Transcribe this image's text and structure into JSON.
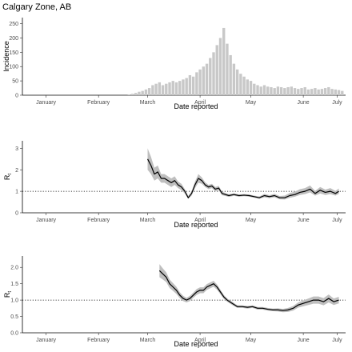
{
  "title": "Calgary Zone, AB",
  "colors": {
    "bars": "#c8c8c8",
    "line": "#000000",
    "ribbon": "#bfbfbf",
    "axis": "#000000",
    "reference_line": "#000000"
  },
  "chart_data": [
    {
      "type": "bar",
      "title": "Calgary Zone, AB",
      "xlabel": "Date reported",
      "ylabel": "Incidence",
      "x_tick_labels": [
        "January",
        "February",
        "March",
        "April",
        "May",
        "June",
        "July"
      ],
      "y_ticks": [
        0,
        50,
        100,
        150,
        200,
        250
      ],
      "ylim": [
        0,
        260
      ],
      "xlim": [
        "2020-01-01",
        "2020-07-10"
      ],
      "x": [
        "2020-03-04",
        "2020-03-06",
        "2020-03-08",
        "2020-03-10",
        "2020-03-12",
        "2020-03-14",
        "2020-03-16",
        "2020-03-18",
        "2020-03-20",
        "2020-03-22",
        "2020-03-24",
        "2020-03-26",
        "2020-03-28",
        "2020-03-30",
        "2020-04-01",
        "2020-04-03",
        "2020-04-05",
        "2020-04-07",
        "2020-04-09",
        "2020-04-11",
        "2020-04-13",
        "2020-04-15",
        "2020-04-17",
        "2020-04-19",
        "2020-04-21",
        "2020-04-23",
        "2020-04-25",
        "2020-04-27",
        "2020-04-29",
        "2020-05-01",
        "2020-05-03",
        "2020-05-05",
        "2020-05-07",
        "2020-05-09",
        "2020-05-11",
        "2020-05-13",
        "2020-05-15",
        "2020-05-17",
        "2020-05-19",
        "2020-05-21",
        "2020-05-23",
        "2020-05-25",
        "2020-05-27",
        "2020-05-29",
        "2020-05-31",
        "2020-06-02",
        "2020-06-04",
        "2020-06-06",
        "2020-06-08",
        "2020-06-10",
        "2020-06-12",
        "2020-06-14",
        "2020-06-16",
        "2020-06-18",
        "2020-06-20",
        "2020-06-22",
        "2020-06-24",
        "2020-06-26",
        "2020-06-28",
        "2020-06-30",
        "2020-07-02",
        "2020-07-04",
        "2020-07-06",
        "2020-07-08"
      ],
      "values": [
        3,
        5,
        8,
        12,
        15,
        20,
        25,
        35,
        40,
        45,
        35,
        40,
        45,
        50,
        45,
        50,
        55,
        60,
        70,
        65,
        80,
        90,
        100,
        110,
        130,
        150,
        175,
        200,
        235,
        180,
        140,
        110,
        90,
        75,
        65,
        55,
        50,
        40,
        35,
        30,
        35,
        30,
        28,
        25,
        30,
        28,
        25,
        28,
        30,
        25,
        22,
        25,
        28,
        20,
        22,
        25,
        20,
        22,
        25,
        28,
        22,
        20,
        18,
        15
      ],
      "series": [
        {
          "name": "",
          "color": "#c8c8c8"
        }
      ]
    },
    {
      "type": "line",
      "title": "",
      "xlabel": "Date reported",
      "ylabel": "Rt",
      "x_tick_labels": [
        "January",
        "February",
        "March",
        "April",
        "May",
        "June",
        "July"
      ],
      "y_ticks": [
        0,
        1,
        2,
        3
      ],
      "ylim": [
        0,
        3.2
      ],
      "xlim": [
        "2020-01-01",
        "2020-07-10"
      ],
      "reference_line": 1,
      "x": [
        "2020-03-15",
        "2020-03-17",
        "2020-03-19",
        "2020-03-21",
        "2020-03-23",
        "2020-03-25",
        "2020-03-27",
        "2020-03-29",
        "2020-03-31",
        "2020-04-02",
        "2020-04-04",
        "2020-04-06",
        "2020-04-08",
        "2020-04-10",
        "2020-04-12",
        "2020-04-14",
        "2020-04-16",
        "2020-04-18",
        "2020-04-20",
        "2020-04-22",
        "2020-04-24",
        "2020-04-26",
        "2020-04-28",
        "2020-04-30",
        "2020-05-02",
        "2020-05-05",
        "2020-05-08",
        "2020-05-11",
        "2020-05-14",
        "2020-05-17",
        "2020-05-20",
        "2020-05-23",
        "2020-05-26",
        "2020-05-29",
        "2020-06-01",
        "2020-06-04",
        "2020-06-07",
        "2020-06-10",
        "2020-06-13",
        "2020-06-16",
        "2020-06-19",
        "2020-06-22",
        "2020-06-25",
        "2020-06-28",
        "2020-07-01",
        "2020-07-04",
        "2020-07-06"
      ],
      "values": [
        2.5,
        2.2,
        1.8,
        1.9,
        1.6,
        1.6,
        1.5,
        1.4,
        1.5,
        1.3,
        1.2,
        1.0,
        0.7,
        0.9,
        1.3,
        1.6,
        1.5,
        1.3,
        1.2,
        1.25,
        1.1,
        1.15,
        0.9,
        0.85,
        0.8,
        0.85,
        0.8,
        0.82,
        0.8,
        0.75,
        0.7,
        0.8,
        0.75,
        0.8,
        0.7,
        0.7,
        0.8,
        0.85,
        0.95,
        1.0,
        1.1,
        0.9,
        1.05,
        0.95,
        1.0,
        0.9,
        1.0
      ],
      "ci_lower": [
        2.0,
        1.8,
        1.5,
        1.6,
        1.4,
        1.4,
        1.3,
        1.2,
        1.3,
        1.15,
        1.05,
        0.9,
        0.65,
        0.8,
        1.15,
        1.4,
        1.35,
        1.2,
        1.1,
        1.15,
        1.0,
        1.05,
        0.82,
        0.78,
        0.74,
        0.79,
        0.75,
        0.77,
        0.75,
        0.7,
        0.65,
        0.72,
        0.68,
        0.72,
        0.63,
        0.62,
        0.7,
        0.75,
        0.83,
        0.87,
        0.95,
        0.8,
        0.9,
        0.83,
        0.87,
        0.8,
        0.88
      ],
      "ci_upper": [
        3.0,
        2.6,
        2.1,
        2.2,
        1.8,
        1.8,
        1.7,
        1.6,
        1.7,
        1.45,
        1.35,
        1.1,
        0.78,
        1.0,
        1.45,
        1.8,
        1.65,
        1.42,
        1.3,
        1.35,
        1.2,
        1.25,
        0.98,
        0.92,
        0.86,
        0.91,
        0.85,
        0.87,
        0.85,
        0.8,
        0.76,
        0.88,
        0.82,
        0.88,
        0.78,
        0.8,
        0.92,
        0.98,
        1.1,
        1.15,
        1.27,
        1.02,
        1.2,
        1.08,
        1.15,
        1.02,
        1.13
      ],
      "series": [
        {
          "name": "",
          "color": "#000000"
        }
      ]
    },
    {
      "type": "line",
      "title": "",
      "xlabel": "Date reported",
      "ylabel": "Rt",
      "x_tick_labels": [
        "January",
        "February",
        "March",
        "April",
        "May",
        "June",
        "July"
      ],
      "y_ticks": [
        0.0,
        0.5,
        1.0,
        1.5,
        2.0
      ],
      "ylim": [
        0,
        2.25
      ],
      "xlim": [
        "2020-01-01",
        "2020-07-10"
      ],
      "reference_line": 1,
      "x": [
        "2020-03-22",
        "2020-03-24",
        "2020-03-26",
        "2020-03-28",
        "2020-03-30",
        "2020-04-01",
        "2020-04-03",
        "2020-04-05",
        "2020-04-07",
        "2020-04-09",
        "2020-04-11",
        "2020-04-13",
        "2020-04-15",
        "2020-04-17",
        "2020-04-19",
        "2020-04-21",
        "2020-04-23",
        "2020-04-25",
        "2020-04-27",
        "2020-04-29",
        "2020-05-01",
        "2020-05-04",
        "2020-05-07",
        "2020-05-10",
        "2020-05-13",
        "2020-05-16",
        "2020-05-19",
        "2020-05-22",
        "2020-05-25",
        "2020-05-28",
        "2020-05-31",
        "2020-06-03",
        "2020-06-06",
        "2020-06-09",
        "2020-06-12",
        "2020-06-15",
        "2020-06-18",
        "2020-06-21",
        "2020-06-24",
        "2020-06-27",
        "2020-06-30",
        "2020-07-03",
        "2020-07-06"
      ],
      "values": [
        1.9,
        1.8,
        1.7,
        1.5,
        1.4,
        1.3,
        1.15,
        1.05,
        1.0,
        1.05,
        1.15,
        1.25,
        1.3,
        1.3,
        1.4,
        1.45,
        1.5,
        1.4,
        1.25,
        1.1,
        1.0,
        0.9,
        0.8,
        0.8,
        0.78,
        0.8,
        0.75,
        0.75,
        0.72,
        0.7,
        0.7,
        0.68,
        0.7,
        0.75,
        0.85,
        0.9,
        0.95,
        1.0,
        1.0,
        0.95,
        1.05,
        0.95,
        1.0
      ],
      "ci_lower": [
        1.7,
        1.63,
        1.55,
        1.37,
        1.28,
        1.19,
        1.06,
        0.97,
        0.93,
        0.97,
        1.07,
        1.16,
        1.21,
        1.21,
        1.31,
        1.36,
        1.41,
        1.32,
        1.18,
        1.04,
        0.95,
        0.85,
        0.76,
        0.76,
        0.74,
        0.76,
        0.71,
        0.71,
        0.68,
        0.66,
        0.65,
        0.63,
        0.64,
        0.68,
        0.77,
        0.81,
        0.85,
        0.89,
        0.89,
        0.84,
        0.93,
        0.85,
        0.9
      ],
      "ci_upper": [
        2.1,
        1.97,
        1.85,
        1.63,
        1.52,
        1.41,
        1.24,
        1.13,
        1.07,
        1.13,
        1.23,
        1.34,
        1.39,
        1.39,
        1.49,
        1.54,
        1.59,
        1.48,
        1.32,
        1.16,
        1.05,
        0.95,
        0.84,
        0.84,
        0.82,
        0.84,
        0.79,
        0.79,
        0.76,
        0.74,
        0.75,
        0.73,
        0.76,
        0.82,
        0.93,
        0.99,
        1.05,
        1.11,
        1.11,
        1.06,
        1.17,
        1.05,
        1.1
      ],
      "series": [
        {
          "name": "",
          "color": "#000000"
        }
      ]
    }
  ]
}
